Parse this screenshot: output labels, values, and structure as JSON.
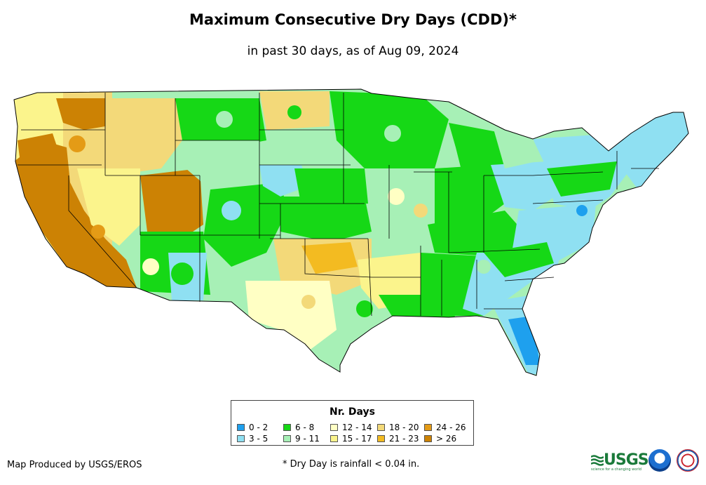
{
  "header": {
    "title": "Maximum Consecutive Dry Days (CDD)*",
    "subtitle": "in past 30 days, as of Aug 09, 2024"
  },
  "legend": {
    "title": "Nr. Days",
    "items": [
      {
        "label": "0 - 2",
        "color": "#1ea0ee"
      },
      {
        "label": "3 - 5",
        "color": "#8fe0f2"
      },
      {
        "label": "6 - 8",
        "color": "#16d816"
      },
      {
        "label": "9 - 11",
        "color": "#a7f0b6"
      },
      {
        "label": "12 - 14",
        "color": "#ffffc4"
      },
      {
        "label": "15 - 17",
        "color": "#fbf48c"
      },
      {
        "label": "18 - 20",
        "color": "#f3d979"
      },
      {
        "label": "21 - 23",
        "color": "#f3bb21"
      },
      {
        "label": "24 - 26",
        "color": "#e49b16"
      },
      {
        "label": "> 26",
        "color": "#cc8204"
      }
    ]
  },
  "footer": {
    "credit": "Map Produced by USGS/EROS",
    "note": "* Dry Day is rainfall < 0.04 in."
  },
  "logos": {
    "usgs": "USGS",
    "usgs_tagline": "science for a changing world",
    "noaa_icon": "noaa-seal-icon",
    "nws_icon": "nws-seal-icon"
  }
}
